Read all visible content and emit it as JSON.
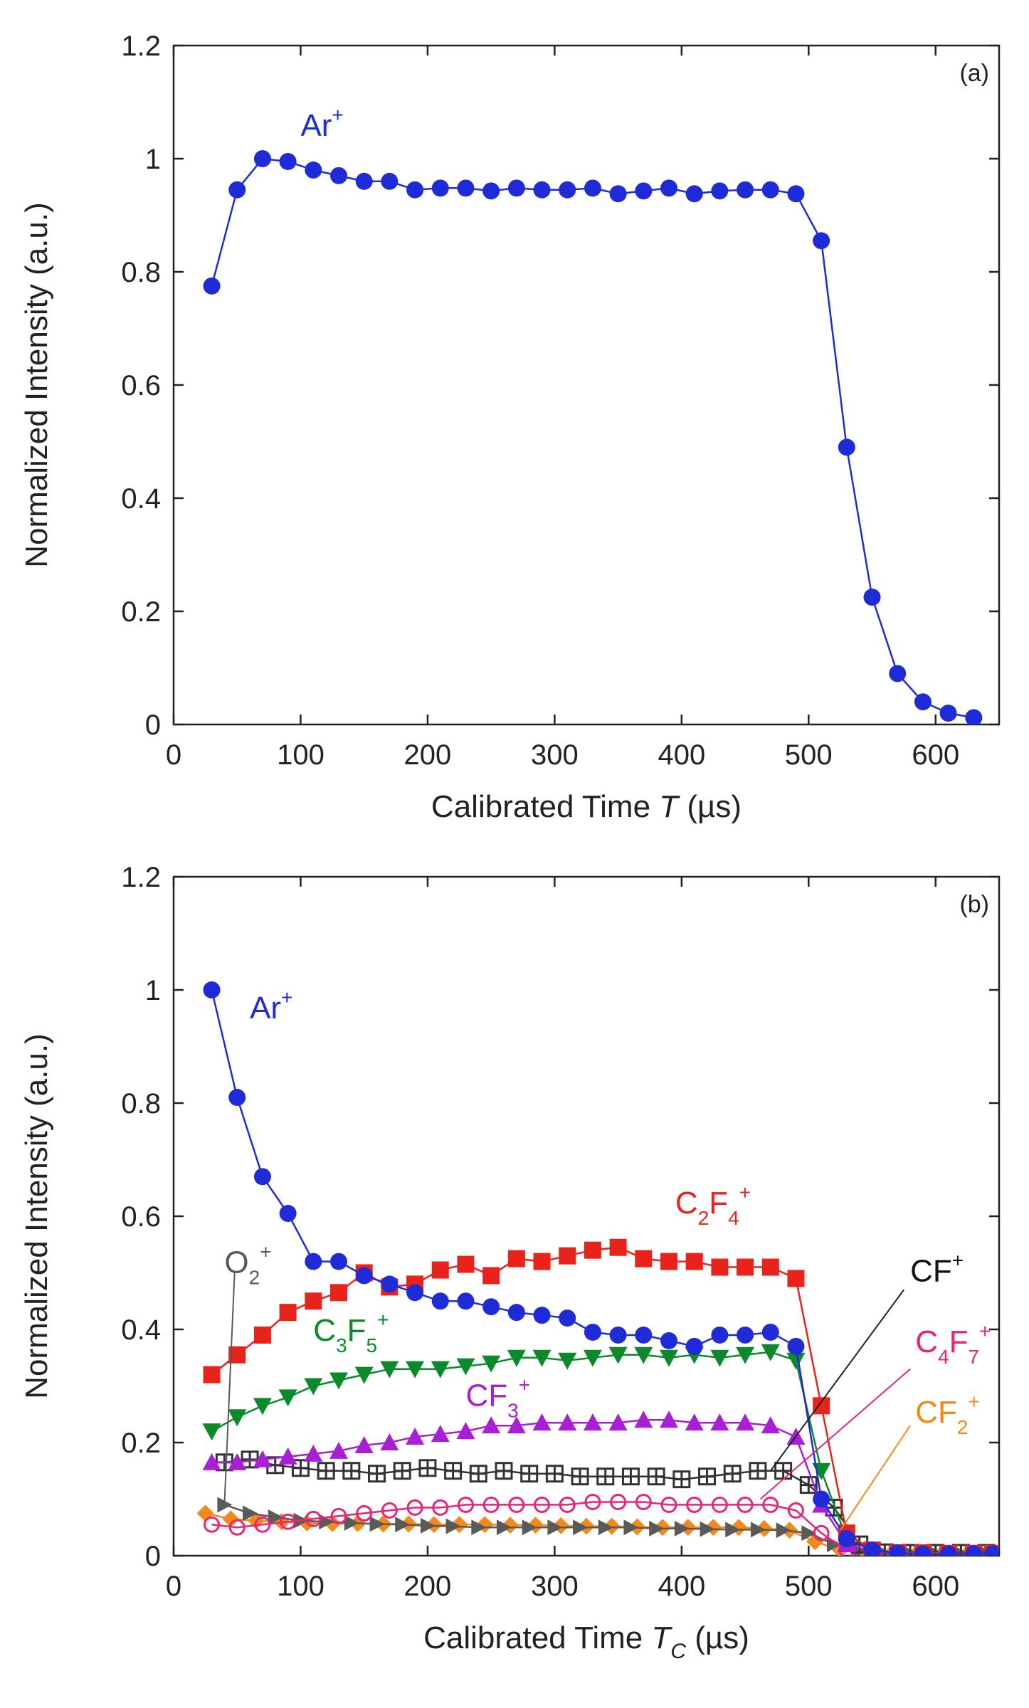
{
  "chart_data": [
    {
      "type": "line",
      "panel_label": "(a)",
      "xlabel": "Calibrated Time",
      "xlabel_var": "T",
      "xlabel_sub": "",
      "xlabel_unit": "(µs)",
      "ylabel": "Normalized Intensity (a.u.)",
      "xlim": [
        0,
        650
      ],
      "ylim": [
        0,
        1.2
      ],
      "xticks": [
        0,
        100,
        200,
        300,
        400,
        500,
        600
      ],
      "xtick_labels": [
        "0",
        "100",
        "200",
        "300",
        "400",
        "500",
        "600"
      ],
      "yticks": [
        0,
        0.2,
        0.4,
        0.6,
        0.8,
        1,
        1.2
      ],
      "ytick_labels": [
        "0",
        "0.2",
        "0.4",
        "0.6",
        "0.8",
        "1",
        "1.2"
      ],
      "series": [
        {
          "name": "Ar+",
          "label_base": "Ar",
          "label_sup": "+",
          "color": "#1f2bd6",
          "marker": "circle",
          "x": [
            30,
            50,
            70,
            90,
            110,
            130,
            150,
            170,
            190,
            210,
            230,
            250,
            270,
            290,
            310,
            330,
            350,
            370,
            390,
            410,
            430,
            450,
            470,
            490,
            510,
            530,
            550,
            570,
            590,
            610,
            630
          ],
          "values": [
            0.775,
            0.945,
            1.0,
            0.995,
            0.98,
            0.97,
            0.96,
            0.96,
            0.945,
            0.948,
            0.948,
            0.943,
            0.948,
            0.945,
            0.945,
            0.948,
            0.938,
            0.943,
            0.948,
            0.938,
            0.943,
            0.945,
            0.945,
            0.938,
            0.855,
            0.49,
            0.225,
            0.09,
            0.04,
            0.02,
            0.012
          ]
        }
      ]
    },
    {
      "type": "line",
      "panel_label": "(b)",
      "xlabel": "Calibrated Time",
      "xlabel_var": "T",
      "xlabel_sub": "C",
      "xlabel_unit": "(µs)",
      "ylabel": "Normalized Intensity (a.u.)",
      "xlim": [
        0,
        650
      ],
      "ylim": [
        0,
        1.2
      ],
      "xticks": [
        0,
        100,
        200,
        300,
        400,
        500,
        600
      ],
      "xtick_labels": [
        "0",
        "100",
        "200",
        "300",
        "400",
        "500",
        "600"
      ],
      "yticks": [
        0,
        0.2,
        0.4,
        0.6,
        0.8,
        1,
        1.2
      ],
      "ytick_labels": [
        "0",
        "0.2",
        "0.4",
        "0.6",
        "0.8",
        "1",
        "1.2"
      ],
      "series": [
        {
          "name": "Ar+",
          "label_base": "Ar",
          "label_sup": "+",
          "color": "#1f2bd6",
          "marker": "circle",
          "x": [
            30,
            50,
            70,
            90,
            110,
            130,
            150,
            170,
            190,
            210,
            230,
            250,
            270,
            290,
            310,
            330,
            350,
            370,
            390,
            410,
            430,
            450,
            470,
            490,
            510,
            530,
            550,
            570,
            590,
            610,
            630,
            645
          ],
          "values": [
            1.0,
            0.81,
            0.67,
            0.605,
            0.52,
            0.52,
            0.495,
            0.48,
            0.465,
            0.45,
            0.45,
            0.44,
            0.43,
            0.425,
            0.42,
            0.395,
            0.39,
            0.39,
            0.38,
            0.37,
            0.39,
            0.39,
            0.395,
            0.37,
            0.1,
            0.03,
            0.01,
            0.005,
            0.003,
            0.003,
            0.003,
            0.003
          ]
        },
        {
          "name": "C2F4+",
          "label_base": "C",
          "label_sub": "2",
          "label_base2": "F",
          "label_sub2": "4",
          "label_sup": "+",
          "color": "#e8231c",
          "marker": "square",
          "x": [
            30,
            50,
            70,
            90,
            110,
            130,
            150,
            170,
            190,
            210,
            230,
            250,
            270,
            290,
            310,
            330,
            350,
            370,
            390,
            410,
            430,
            450,
            470,
            490,
            510,
            530,
            550,
            570,
            590,
            610,
            630,
            645
          ],
          "values": [
            0.32,
            0.355,
            0.39,
            0.43,
            0.45,
            0.465,
            0.5,
            0.475,
            0.48,
            0.505,
            0.515,
            0.495,
            0.525,
            0.52,
            0.53,
            0.54,
            0.545,
            0.525,
            0.52,
            0.52,
            0.51,
            0.51,
            0.51,
            0.49,
            0.265,
            0.04,
            0.01,
            0.005,
            0.005,
            0.004,
            0.004,
            0.004
          ]
        },
        {
          "name": "C3F5+",
          "label_base": "C",
          "label_sub": "3",
          "label_base2": "F",
          "label_sub2": "5",
          "label_sup": "+",
          "color": "#0a8a2a",
          "marker": "triangle-down",
          "x": [
            30,
            50,
            70,
            90,
            110,
            130,
            150,
            170,
            190,
            210,
            230,
            250,
            270,
            290,
            310,
            330,
            350,
            370,
            390,
            410,
            430,
            450,
            470,
            490,
            510,
            530,
            550,
            570,
            590,
            610,
            630,
            645
          ],
          "values": [
            0.22,
            0.245,
            0.265,
            0.28,
            0.3,
            0.31,
            0.32,
            0.33,
            0.33,
            0.33,
            0.335,
            0.34,
            0.35,
            0.35,
            0.345,
            0.35,
            0.355,
            0.355,
            0.35,
            0.355,
            0.35,
            0.355,
            0.36,
            0.345,
            0.15,
            0.03,
            0.01,
            0.005,
            0.004,
            0.004,
            0.004,
            0.004
          ]
        },
        {
          "name": "CF3+",
          "label_base": "CF",
          "label_sub": "3",
          "label_sup": "+",
          "color": "#a91fd6",
          "marker": "triangle-up",
          "x": [
            30,
            50,
            70,
            90,
            110,
            130,
            150,
            170,
            190,
            210,
            230,
            250,
            270,
            290,
            310,
            330,
            350,
            370,
            390,
            410,
            430,
            450,
            470,
            490,
            510,
            530,
            550,
            570,
            590,
            610,
            630,
            645
          ],
          "values": [
            0.165,
            0.165,
            0.17,
            0.175,
            0.18,
            0.185,
            0.195,
            0.2,
            0.21,
            0.215,
            0.22,
            0.23,
            0.23,
            0.235,
            0.235,
            0.235,
            0.235,
            0.24,
            0.24,
            0.235,
            0.235,
            0.235,
            0.23,
            0.21,
            0.09,
            0.02,
            0.008,
            0.005,
            0.004,
            0.004,
            0.004,
            0.004
          ]
        },
        {
          "name": "CF+",
          "label_base": "CF",
          "label_sup": "+",
          "color": "#333333",
          "marker": "boxed-plus",
          "x": [
            40,
            60,
            80,
            100,
            120,
            140,
            160,
            180,
            200,
            220,
            240,
            260,
            280,
            300,
            320,
            340,
            360,
            380,
            400,
            420,
            440,
            460,
            480,
            500,
            520,
            540,
            560,
            580,
            600,
            620,
            640
          ],
          "values": [
            0.165,
            0.17,
            0.16,
            0.155,
            0.15,
            0.15,
            0.145,
            0.15,
            0.155,
            0.15,
            0.145,
            0.15,
            0.145,
            0.145,
            0.14,
            0.14,
            0.14,
            0.14,
            0.135,
            0.14,
            0.145,
            0.15,
            0.15,
            0.125,
            0.085,
            0.02,
            0.006,
            0.005,
            0.005,
            0.005,
            0.005
          ]
        },
        {
          "name": "C4F7+",
          "label_base": "C",
          "label_sub": "4",
          "label_base2": "F",
          "label_sub2": "7",
          "label_sup": "+",
          "color": "#e8247a",
          "marker": "circle-open",
          "x": [
            30,
            50,
            70,
            90,
            110,
            130,
            150,
            170,
            190,
            210,
            230,
            250,
            270,
            290,
            310,
            330,
            350,
            370,
            390,
            410,
            430,
            450,
            470,
            490,
            510,
            530,
            550,
            570,
            590,
            610,
            630,
            645
          ],
          "values": [
            0.055,
            0.05,
            0.055,
            0.06,
            0.065,
            0.07,
            0.075,
            0.08,
            0.085,
            0.085,
            0.09,
            0.09,
            0.09,
            0.09,
            0.09,
            0.095,
            0.095,
            0.095,
            0.09,
            0.09,
            0.09,
            0.09,
            0.09,
            0.08,
            0.04,
            0.01,
            0.005,
            0.004,
            0.004,
            0.004,
            0.004,
            0.004
          ]
        },
        {
          "name": "O2+",
          "label_base": "O",
          "label_sub": "2",
          "label_sup": "+",
          "color": "#5a5a5a",
          "marker": "triangle-right",
          "x": [
            40,
            60,
            80,
            100,
            120,
            140,
            160,
            180,
            200,
            220,
            240,
            260,
            280,
            300,
            320,
            340,
            360,
            380,
            400,
            420,
            440,
            460,
            480,
            500,
            520,
            540,
            560,
            580,
            600,
            620,
            640
          ],
          "values": [
            0.09,
            0.075,
            0.068,
            0.062,
            0.06,
            0.058,
            0.056,
            0.055,
            0.053,
            0.052,
            0.05,
            0.05,
            0.05,
            0.05,
            0.05,
            0.05,
            0.05,
            0.048,
            0.048,
            0.047,
            0.046,
            0.046,
            0.045,
            0.04,
            0.02,
            0.008,
            0.004,
            0.004,
            0.004,
            0.004,
            0.004
          ]
        },
        {
          "name": "CF2+",
          "label_base": "CF",
          "label_sub": "2",
          "label_sup": "+",
          "color": "#f28a1a",
          "marker": "diamond",
          "x": [
            25,
            45,
            65,
            85,
            105,
            125,
            145,
            165,
            185,
            205,
            225,
            245,
            265,
            285,
            305,
            325,
            345,
            365,
            385,
            405,
            425,
            445,
            465,
            485,
            505,
            525,
            545,
            565,
            585,
            605,
            625,
            645
          ],
          "values": [
            0.075,
            0.065,
            0.062,
            0.06,
            0.058,
            0.057,
            0.057,
            0.056,
            0.056,
            0.055,
            0.055,
            0.055,
            0.054,
            0.054,
            0.053,
            0.052,
            0.052,
            0.051,
            0.05,
            0.05,
            0.05,
            0.05,
            0.048,
            0.045,
            0.025,
            0.01,
            0.005,
            0.004,
            0.004,
            0.004,
            0.004,
            0.004
          ]
        }
      ]
    }
  ]
}
